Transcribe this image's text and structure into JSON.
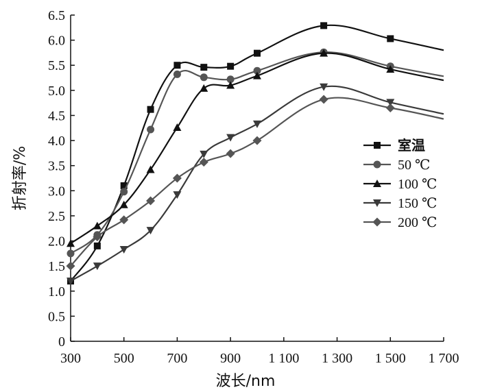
{
  "chart_data": {
    "type": "line",
    "xlabel": "波长/nm",
    "ylabel": "折射率/%",
    "xlim": [
      300,
      1700
    ],
    "ylim": [
      0,
      6.5
    ],
    "xticks": [
      300,
      500,
      700,
      900,
      1100,
      1300,
      1500,
      1700
    ],
    "xtick_labels": [
      "300",
      "500",
      "700",
      "900",
      "1 100",
      "1 300",
      "1 500",
      "1 700"
    ],
    "yticks": [
      0,
      0.5,
      1.0,
      1.5,
      2.0,
      2.5,
      3.0,
      3.5,
      4.0,
      4.5,
      5.0,
      5.5,
      6.0,
      6.5
    ],
    "ytick_labels": [
      "0",
      "0.5",
      "1.0",
      "1.5",
      "2.0",
      "2.5",
      "3.0",
      "3.5",
      "4.0",
      "4.5",
      "5.0",
      "5.5",
      "6.0",
      "6.5"
    ],
    "legend_position": "right",
    "grid": false,
    "series": [
      {
        "name": "室温",
        "marker": "square",
        "color": "#111111",
        "x": [
          300,
          400,
          500,
          600,
          700,
          800,
          900,
          1000,
          1250,
          1500,
          1700
        ],
        "y": [
          1.2,
          1.9,
          3.1,
          4.62,
          5.5,
          5.46,
          5.48,
          5.74,
          6.29,
          6.03,
          5.8
        ]
      },
      {
        "name": "50 ℃",
        "marker": "circle",
        "color": "#555555",
        "x": [
          300,
          400,
          500,
          600,
          700,
          800,
          900,
          1000,
          1250,
          1500,
          1700
        ],
        "y": [
          1.75,
          2.12,
          2.98,
          4.22,
          5.32,
          5.26,
          5.22,
          5.39,
          5.76,
          5.48,
          5.28
        ]
      },
      {
        "name": "100 ℃",
        "marker": "triangle-up",
        "color": "#111111",
        "x": [
          300,
          400,
          500,
          600,
          700,
          800,
          900,
          1000,
          1250,
          1500,
          1700
        ],
        "y": [
          1.95,
          2.3,
          2.72,
          3.42,
          4.26,
          5.04,
          5.1,
          5.29,
          5.74,
          5.42,
          5.2
        ]
      },
      {
        "name": "150 ℃",
        "marker": "triangle-down",
        "color": "#3a3a3a",
        "x": [
          300,
          400,
          500,
          600,
          700,
          800,
          900,
          1000,
          1250,
          1500,
          1700
        ],
        "y": [
          1.2,
          1.5,
          1.83,
          2.21,
          2.92,
          3.73,
          4.06,
          4.33,
          5.07,
          4.76,
          4.53
        ]
      },
      {
        "name": "200 ℃",
        "marker": "diamond",
        "color": "#555555",
        "x": [
          300,
          400,
          500,
          600,
          700,
          800,
          900,
          1000,
          1250,
          1500,
          1700
        ],
        "y": [
          1.5,
          2.08,
          2.42,
          2.8,
          3.25,
          3.57,
          3.74,
          4.0,
          4.82,
          4.65,
          4.43
        ]
      }
    ]
  }
}
